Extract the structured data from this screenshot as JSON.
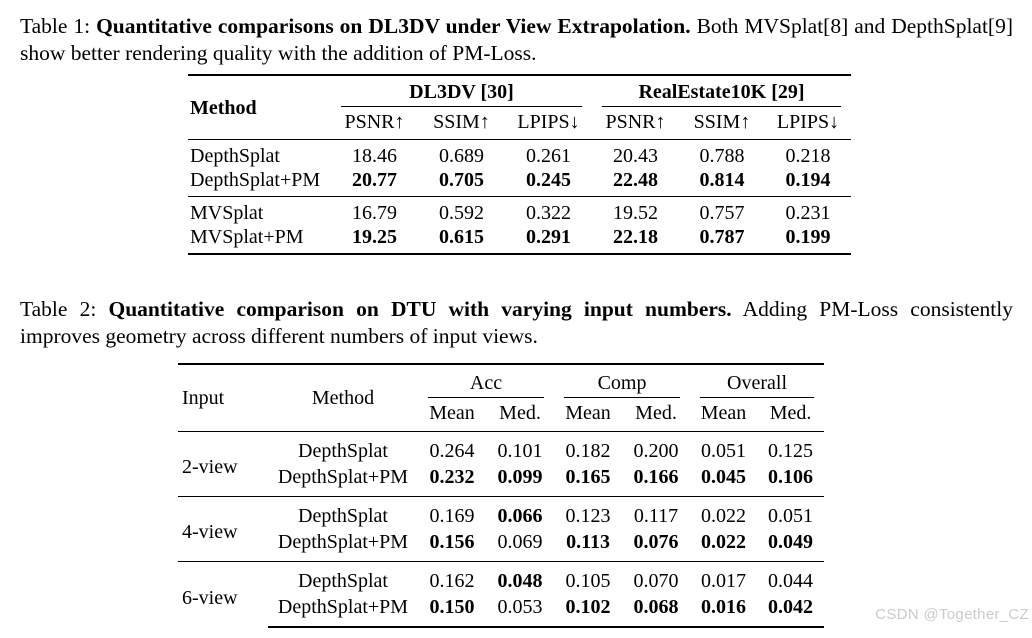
{
  "page": {
    "background": "#ffffff",
    "text_color": "#000000",
    "watermark": "CSDN @Together_CZ",
    "watermark_color": "#cbcbcb"
  },
  "table1": {
    "caption_prefix": "Table 1: ",
    "caption_bold": "Quantitative comparisons on DL3DV under View Extrapolation.",
    "caption_rest": " Both MVSplat[8] and DepthSplat[9] show better rendering quality with the addition of PM-Loss.",
    "col_method": "Method",
    "groups": [
      {
        "label": "DL3DV [30]"
      },
      {
        "label": "RealEstate10K [29]"
      }
    ],
    "metrics": [
      "PSNR↑",
      "SSIM↑",
      "LPIPS↓",
      "PSNR↑",
      "SSIM↑",
      "LPIPS↓"
    ],
    "row_groups": [
      {
        "rows": [
          {
            "method": "DepthSplat",
            "values": [
              "18.46",
              "0.689",
              "0.261",
              "20.43",
              "0.788",
              "0.218"
            ],
            "bold": [
              false,
              false,
              false,
              false,
              false,
              false
            ]
          },
          {
            "method": "DepthSplat+PM",
            "values": [
              "20.77",
              "0.705",
              "0.245",
              "22.48",
              "0.814",
              "0.194"
            ],
            "bold": [
              true,
              true,
              true,
              true,
              true,
              true
            ]
          }
        ]
      },
      {
        "rows": [
          {
            "method": "MVSplat",
            "values": [
              "16.79",
              "0.592",
              "0.322",
              "19.52",
              "0.757",
              "0.231"
            ],
            "bold": [
              false,
              false,
              false,
              false,
              false,
              false
            ]
          },
          {
            "method": "MVSplat+PM",
            "values": [
              "19.25",
              "0.615",
              "0.291",
              "22.18",
              "0.787",
              "0.199"
            ],
            "bold": [
              true,
              true,
              true,
              true,
              true,
              true
            ]
          }
        ]
      }
    ]
  },
  "table2": {
    "caption_prefix": "Table 2: ",
    "caption_bold": "Quantitative comparison on DTU with varying input numbers.",
    "caption_rest": "  Adding PM-Loss consistently improves geometry across different numbers of input views.",
    "col_input": "Input",
    "col_method": "Method",
    "groups": [
      {
        "label": "Acc"
      },
      {
        "label": "Comp"
      },
      {
        "label": "Overall"
      }
    ],
    "metrics": [
      "Mean",
      "Med.",
      "Mean",
      "Med.",
      "Mean",
      "Med."
    ],
    "row_groups": [
      {
        "input": "2-view",
        "rows": [
          {
            "method": "DepthSplat",
            "values": [
              "0.264",
              "0.101",
              "0.182",
              "0.200",
              "0.051",
              "0.125"
            ],
            "bold": [
              false,
              false,
              false,
              false,
              false,
              false
            ]
          },
          {
            "method": "DepthSplat+PM",
            "values": [
              "0.232",
              "0.099",
              "0.165",
              "0.166",
              "0.045",
              "0.106"
            ],
            "bold": [
              true,
              true,
              true,
              true,
              true,
              true
            ]
          }
        ]
      },
      {
        "input": "4-view",
        "rows": [
          {
            "method": "DepthSplat",
            "values": [
              "0.169",
              "0.066",
              "0.123",
              "0.117",
              "0.022",
              "0.051"
            ],
            "bold": [
              false,
              true,
              false,
              false,
              false,
              false
            ]
          },
          {
            "method": "DepthSplat+PM",
            "values": [
              "0.156",
              "0.069",
              "0.113",
              "0.076",
              "0.022",
              "0.049"
            ],
            "bold": [
              true,
              false,
              true,
              true,
              true,
              true
            ]
          }
        ]
      },
      {
        "input": "6-view",
        "rows": [
          {
            "method": "DepthSplat",
            "values": [
              "0.162",
              "0.048",
              "0.105",
              "0.070",
              "0.017",
              "0.044"
            ],
            "bold": [
              false,
              true,
              false,
              false,
              false,
              false
            ]
          },
          {
            "method": "DepthSplat+PM",
            "values": [
              "0.150",
              "0.053",
              "0.102",
              "0.068",
              "0.016",
              "0.042"
            ],
            "bold": [
              true,
              false,
              true,
              true,
              true,
              true
            ]
          }
        ]
      }
    ]
  }
}
